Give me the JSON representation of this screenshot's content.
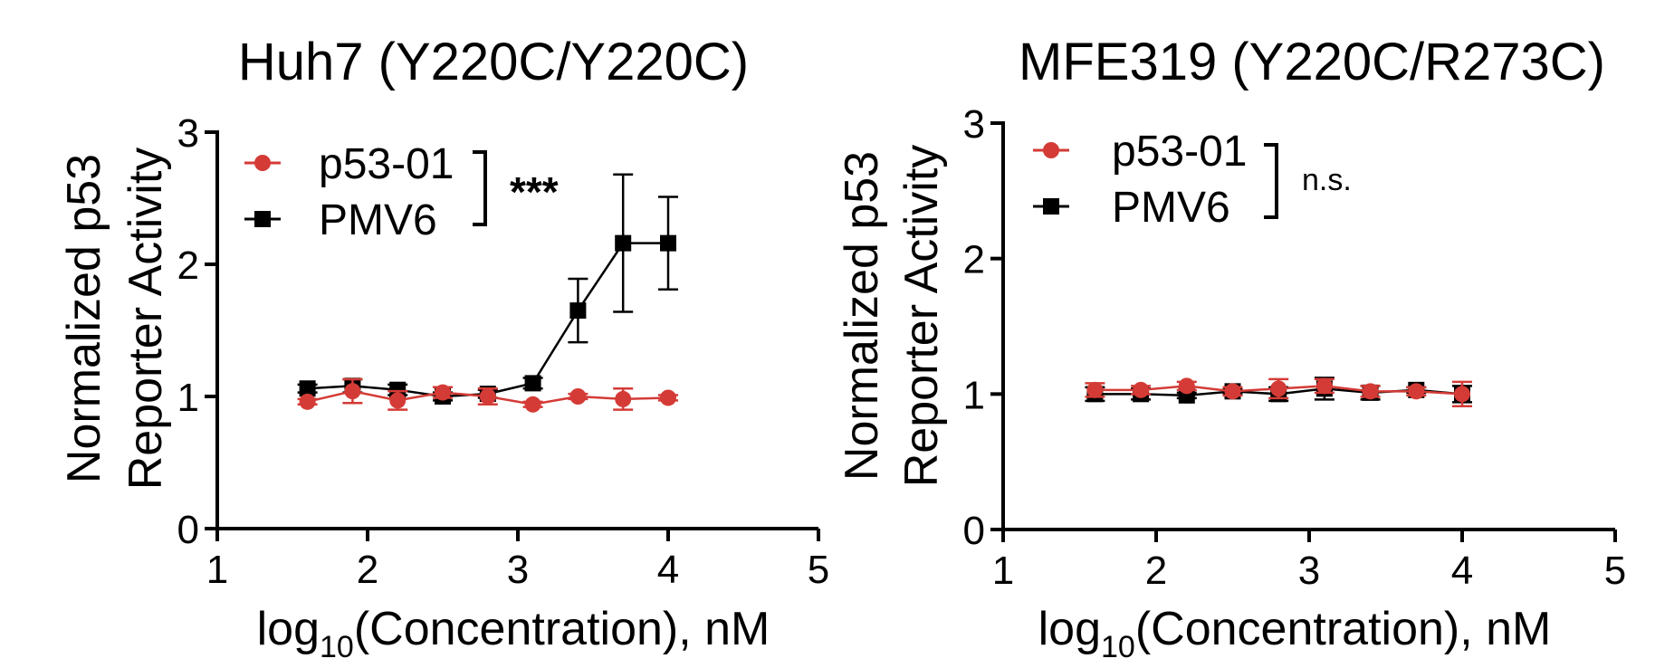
{
  "colors": {
    "p53_01": "#d43b36",
    "pmv6": "#000000"
  },
  "chart_data": [
    {
      "type": "line",
      "title": "Huh7 (Y220C/Y220C)",
      "xlabel_main": "log",
      "xlabel_sub": "10",
      "xlabel_rest": "(Concentration), nM",
      "ylabel_line1": "Normalized p53",
      "ylabel_line2": "Reporter Activity",
      "xlim": [
        1,
        5
      ],
      "ylim": [
        0,
        3
      ],
      "xticks": [
        "1",
        "2",
        "3",
        "4",
        "5"
      ],
      "yticks": [
        "0",
        "1",
        "2",
        "3"
      ],
      "significance": "***",
      "series": [
        {
          "name": "p53-01",
          "marker": "circle",
          "x": [
            1.6,
            1.9,
            2.2,
            2.5,
            2.8,
            3.1,
            3.4,
            3.7,
            4.0
          ],
          "y": [
            0.96,
            1.04,
            0.97,
            1.03,
            1.0,
            0.94,
            1.0,
            0.98,
            0.99
          ],
          "err": [
            0.02,
            0.09,
            0.07,
            0.04,
            0.06,
            0.02,
            0.02,
            0.08,
            0.02
          ]
        },
        {
          "name": "PMV6",
          "marker": "square",
          "x": [
            1.6,
            1.9,
            2.2,
            2.5,
            2.8,
            3.1,
            3.4,
            3.7,
            4.0
          ],
          "y": [
            1.06,
            1.08,
            1.05,
            1.0,
            1.02,
            1.1,
            1.65,
            2.16,
            2.16
          ],
          "err": [
            0.03,
            0.05,
            0.04,
            0.03,
            0.03,
            0.04,
            0.24,
            0.52,
            0.35
          ]
        }
      ]
    },
    {
      "type": "line",
      "title": "MFE319 (Y220C/R273C)",
      "xlabel_main": "log",
      "xlabel_sub": "10",
      "xlabel_rest": "(Concentration), nM",
      "ylabel_line1": "Normalized p53",
      "ylabel_line2": "Reporter Activity",
      "xlim": [
        1,
        5
      ],
      "ylim": [
        0,
        3
      ],
      "xticks": [
        "1",
        "2",
        "3",
        "4",
        "5"
      ],
      "yticks": [
        "0",
        "1",
        "2",
        "3"
      ],
      "significance": "n.s.",
      "series": [
        {
          "name": "p53-01",
          "marker": "circle",
          "x": [
            1.6,
            1.9,
            2.2,
            2.5,
            2.8,
            3.1,
            3.4,
            3.7,
            4.0
          ],
          "y": [
            1.03,
            1.03,
            1.06,
            1.02,
            1.04,
            1.06,
            1.02,
            1.02,
            1.0
          ],
          "err": [
            0.05,
            0.03,
            0.03,
            0.03,
            0.07,
            0.05,
            0.04,
            0.03,
            0.09
          ]
        },
        {
          "name": "PMV6",
          "marker": "square",
          "x": [
            1.6,
            1.9,
            2.2,
            2.5,
            2.8,
            3.1,
            3.4,
            3.7,
            4.0
          ],
          "y": [
            1.0,
            1.0,
            0.99,
            1.02,
            1.0,
            1.04,
            1.01,
            1.03,
            1.0
          ],
          "err": [
            0.05,
            0.04,
            0.02,
            0.02,
            0.05,
            0.08,
            0.05,
            0.02,
            0.06
          ]
        }
      ]
    }
  ]
}
